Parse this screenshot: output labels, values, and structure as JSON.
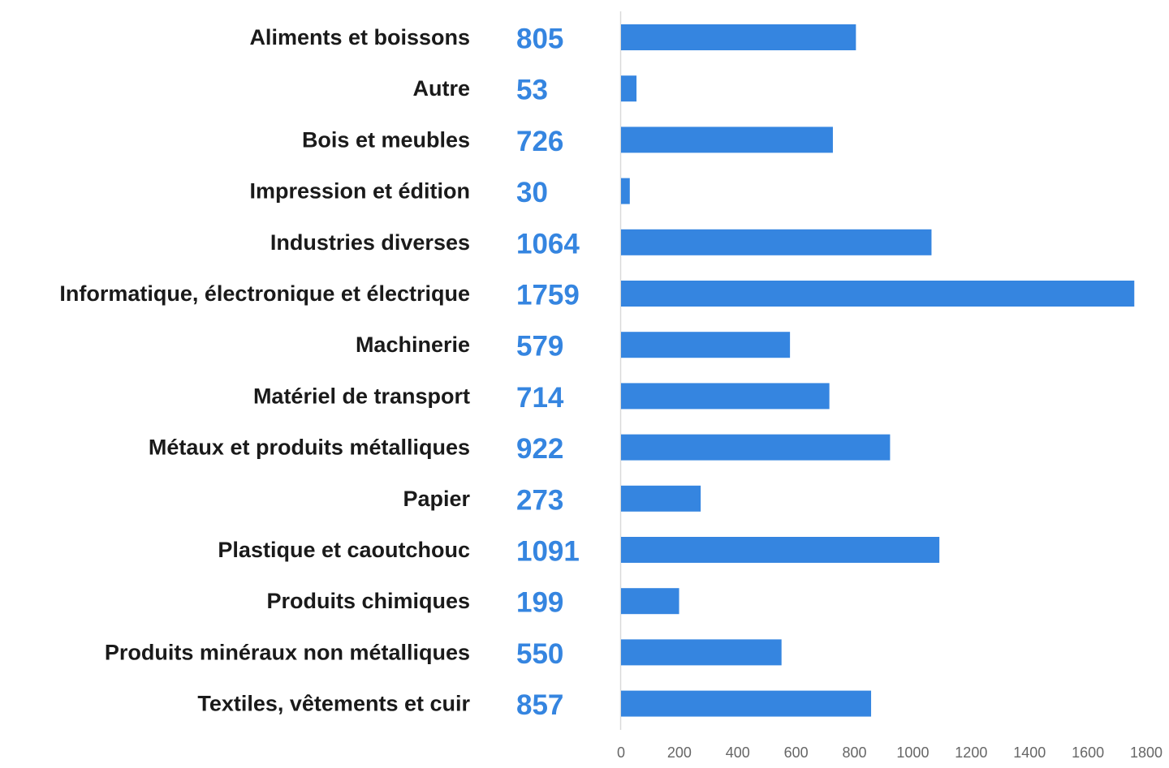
{
  "chart_data": {
    "type": "bar",
    "orientation": "horizontal",
    "categories": [
      "Aliments et boissons",
      "Autre",
      "Bois et meubles",
      "Impression et édition",
      "Industries diverses",
      "Informatique, électronique et électrique",
      "Machinerie",
      "Matériel de transport",
      "Métaux et produits métalliques",
      "Papier",
      "Plastique et caoutchouc",
      "Produits chimiques",
      "Produits minéraux non métalliques",
      "Textiles, vêtements et cuir"
    ],
    "values": [
      805,
      53,
      726,
      30,
      1064,
      1759,
      579,
      714,
      922,
      273,
      1091,
      199,
      550,
      857
    ],
    "value_labels": [
      "805",
      "53",
      "726",
      "30",
      "1064",
      "1759",
      "579",
      "714",
      "922",
      "273",
      "1091",
      "199",
      "550",
      "857"
    ],
    "xlim": [
      0,
      1800
    ],
    "x_ticks": [
      0,
      200,
      400,
      600,
      800,
      1000,
      1200,
      1400,
      1600,
      1800
    ],
    "x_tick_labels": [
      "0",
      "200",
      "400",
      "600",
      "800",
      "1000",
      "1200",
      "1400",
      "1600",
      "1800"
    ],
    "title": "",
    "xlabel": "",
    "ylabel": "",
    "grid": false,
    "legend": "none",
    "colors": {
      "bar": "#3585e0",
      "value_label": "#3585e0",
      "category_label": "#1a1a1a",
      "tick_label": "#666666",
      "axis_line": "#d9d9d9"
    }
  }
}
